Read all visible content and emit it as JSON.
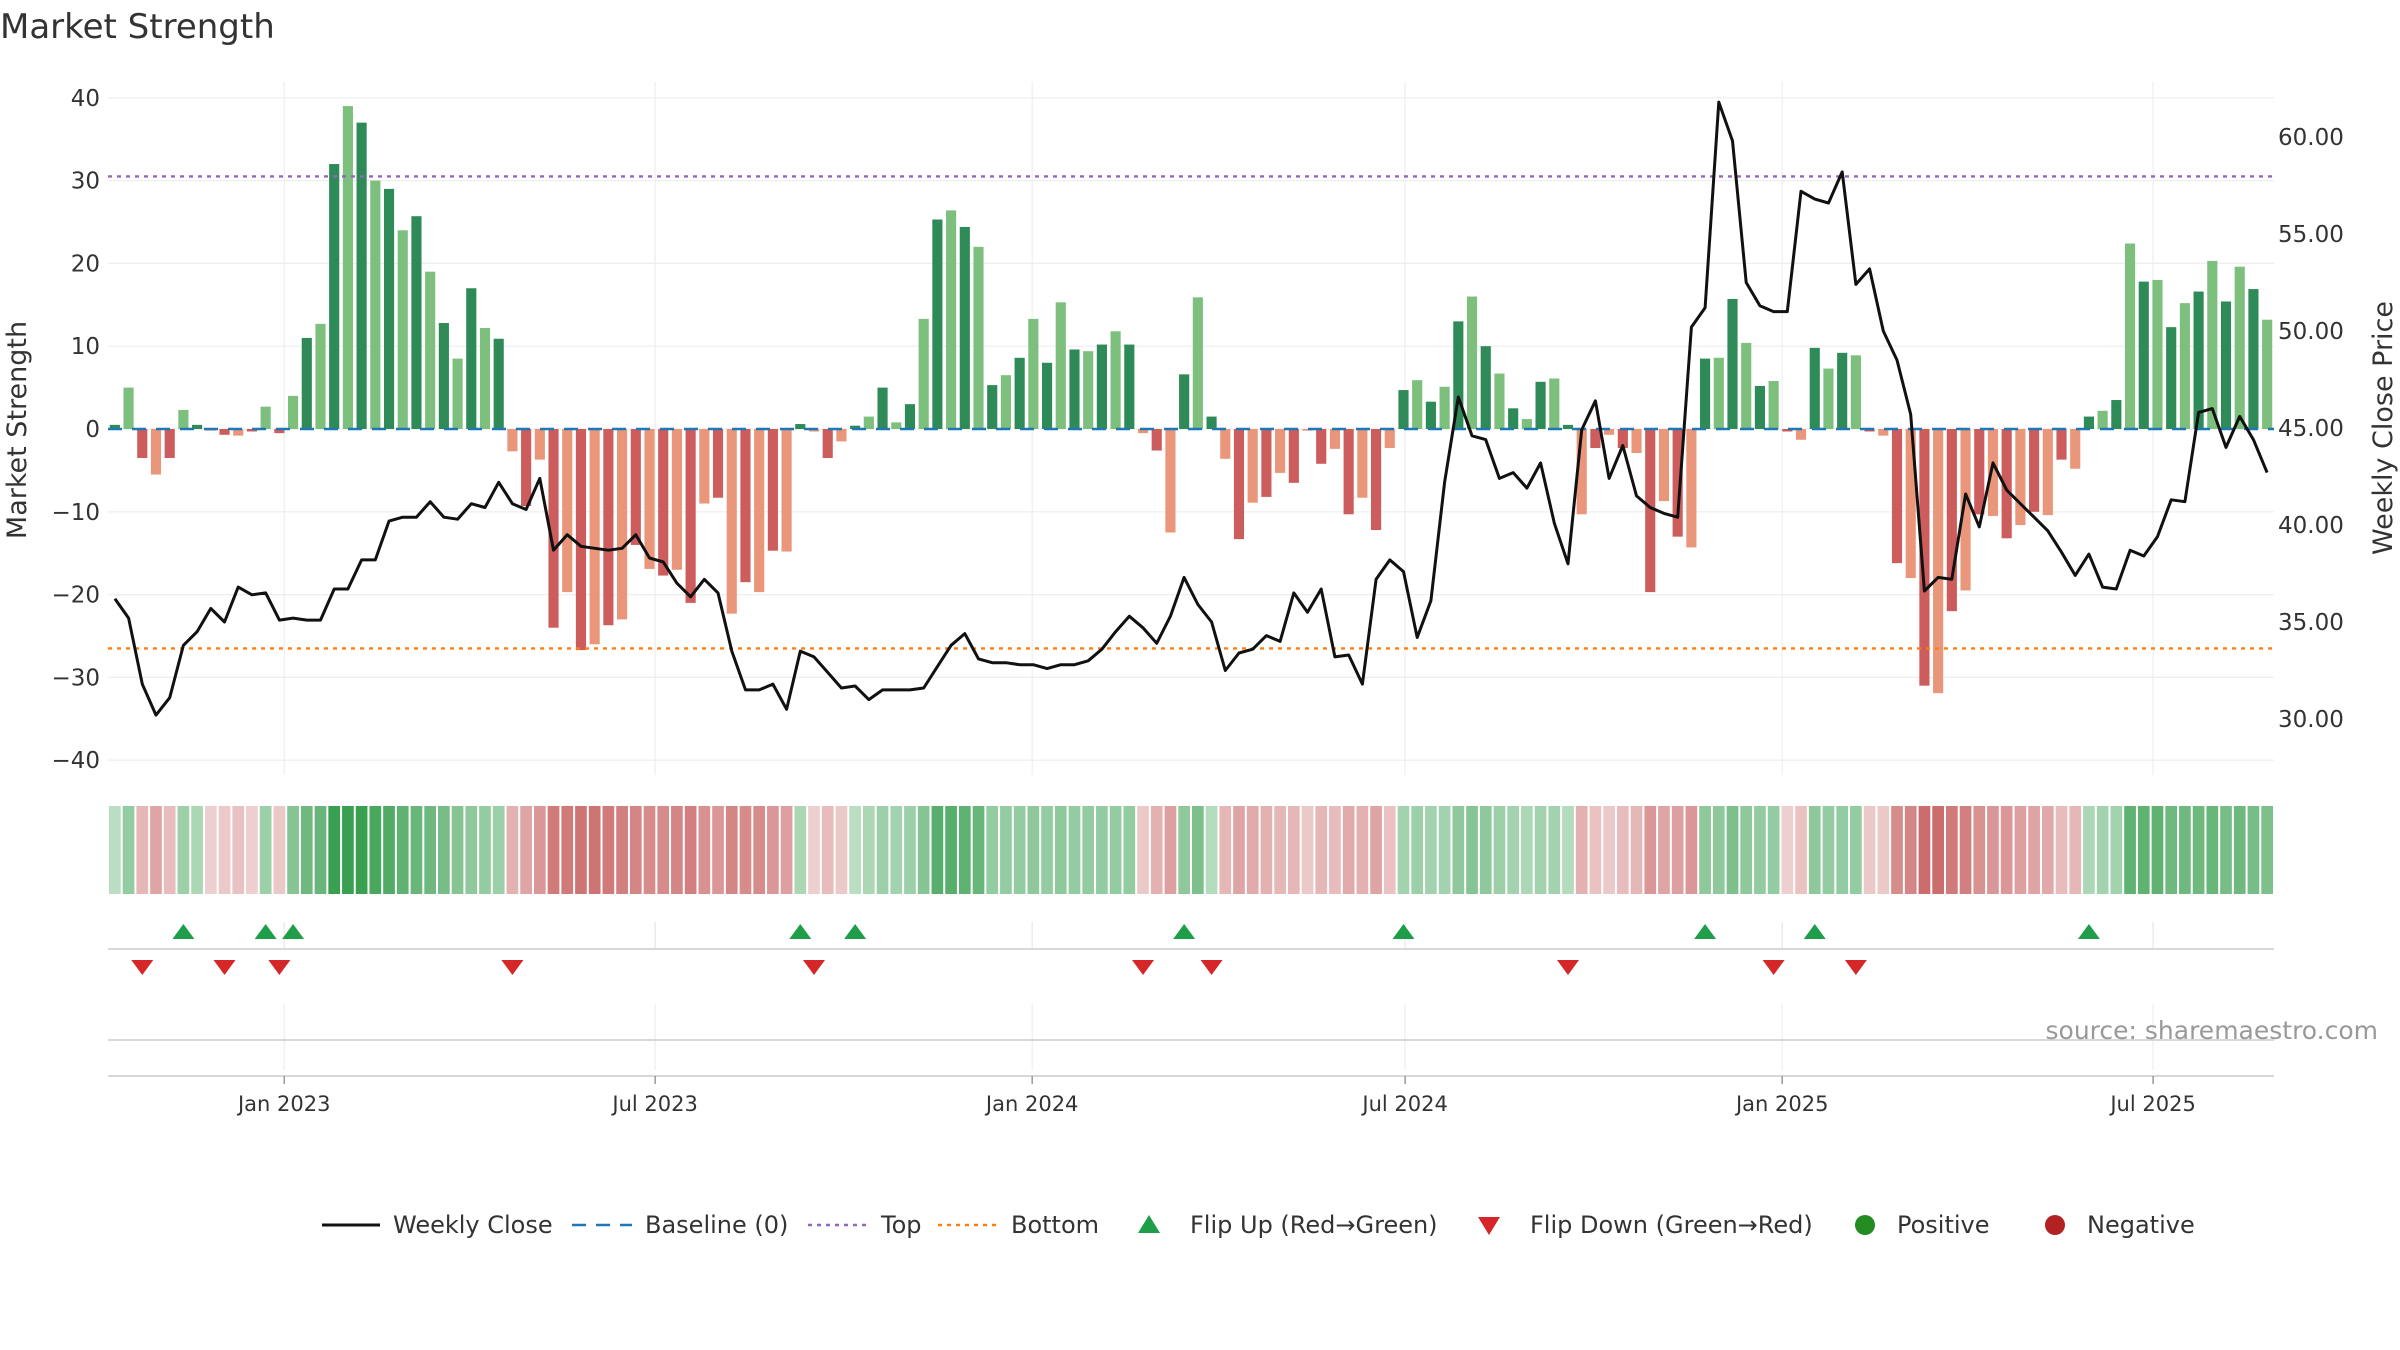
{
  "chart_data": {
    "type": "bar",
    "title": "Market Strength",
    "ylabel": "Market Strength",
    "y2label": "Weekly Close Price",
    "ylim": [
      -44,
      42
    ],
    "y2lim": [
      27.5,
      64
    ],
    "yticks": [
      "40",
      "30",
      "20",
      "10",
      "0",
      "−10",
      "−20",
      "−30",
      "−40"
    ],
    "y2ticks": [
      "60.00",
      "55.00",
      "50.00",
      "45.00",
      "40.00",
      "35.00",
      "30.00"
    ],
    "x_start": "2022-10-07",
    "x_end": "2025-08-29",
    "x_tick_labels": [
      "Jan 2023",
      "Jul 2023",
      "Jan 2024",
      "Jul 2024",
      "Jan 2025",
      "Jul 2025"
    ],
    "x_tick_dates": [
      "2023-01-01",
      "2023-07-01",
      "2024-01-01",
      "2024-07-01",
      "2025-01-01",
      "2025-07-01"
    ],
    "top": 30.5,
    "bottom": -26.5,
    "colors": {
      "strong_green": "#2e8b57",
      "light_green": "#7dbf7d",
      "strong_red": "#cd5c5c",
      "light_red": "#e9967a",
      "price_line": "#111111",
      "baseline": "#1f77b4",
      "top_line": "#9467bd",
      "bottom_line": "#ff7f0e",
      "flip_up": "#1f9e4a",
      "flip_down": "#d62728",
      "positive": "#228b22",
      "negative": "#b22222"
    },
    "strength": [
      0.5,
      5,
      -3.5,
      -5.5,
      -3.5,
      2.3,
      0.5,
      -0.2,
      -0.7,
      -0.8,
      -0.3,
      2.7,
      -0.5,
      4,
      11,
      12.7,
      32,
      39,
      37,
      30,
      29,
      24,
      25.7,
      19,
      12.8,
      8.5,
      17,
      12.2,
      10.9,
      -2.7,
      -9.3,
      -3.7,
      -24,
      -19.7,
      -26.7,
      -26,
      -23.7,
      -23,
      -14,
      -16.9,
      -17.7,
      -17,
      -21,
      -9,
      -8.3,
      -22.3,
      -18.5,
      -19.7,
      -14.7,
      -14.8,
      0.6,
      -0.3,
      -3.5,
      -1.5,
      0.4,
      1.5,
      5,
      0.8,
      3,
      13.3,
      25.3,
      26.4,
      24.4,
      22,
      5.3,
      6.5,
      8.6,
      13.3,
      8,
      15.3,
      9.6,
      9.4,
      10.2,
      11.8,
      10.2,
      -0.5,
      -2.6,
      -12.5,
      6.6,
      15.9,
      1.5,
      -3.6,
      -13.3,
      -8.9,
      -8.2,
      -5.3,
      -6.5,
      -0.2,
      -4.2,
      -2.4,
      -10.3,
      -8.3,
      -12.2,
      -2.3,
      4.7,
      5.9,
      3.3,
      5.1,
      13,
      16,
      10,
      6.7,
      2.5,
      1.2,
      5.7,
      6.1,
      0.5,
      -10.3,
      -2.3,
      -0.7,
      -2.3,
      -2.9,
      -19.7,
      -8.7,
      -13,
      -14.3,
      8.5,
      8.6,
      15.7,
      10.4,
      5.2,
      5.8,
      -0.3,
      -1.3,
      9.8,
      7.3,
      9.2,
      8.9,
      -0.3,
      -0.8,
      -16.2,
      -18,
      -31,
      -31.9,
      -22,
      -19.5,
      -10.3,
      -10.5,
      -13.2,
      -11.6,
      -10,
      -10.4,
      -3.7,
      -4.8,
      1.5,
      2.2,
      3.5,
      22.4,
      17.8,
      18,
      12.3,
      15.2,
      16.6,
      20.3,
      15.4,
      19.6,
      16.9,
      13.2
    ],
    "close": [
      36.2,
      35.2,
      31.8,
      30.2,
      31.1,
      33.8,
      34.5,
      35.7,
      35,
      36.8,
      36.4,
      36.5,
      35.1,
      35.2,
      35.1,
      35.1,
      36.7,
      36.7,
      38.2,
      38.2,
      40.2,
      40.4,
      40.4,
      41.2,
      40.4,
      40.3,
      41.1,
      40.9,
      42.2,
      41.1,
      40.8,
      42.4,
      38.7,
      39.5,
      38.9,
      38.8,
      38.7,
      38.8,
      39.5,
      38.3,
      38.1,
      37,
      36.3,
      37.2,
      36.5,
      33.5,
      31.5,
      31.5,
      31.8,
      30.5,
      33.5,
      33.2,
      32.4,
      31.6,
      31.7,
      31,
      31.5,
      31.5,
      31.5,
      31.6,
      32.7,
      33.8,
      34.4,
      33.1,
      32.9,
      32.9,
      32.8,
      32.8,
      32.6,
      32.8,
      32.8,
      33,
      33.6,
      34.5,
      35.3,
      34.7,
      33.9,
      35.3,
      37.3,
      35.9,
      35,
      32.5,
      33.4,
      33.6,
      34.3,
      34,
      36.5,
      35.5,
      36.7,
      33.2,
      33.3,
      31.8,
      37.2,
      38.2,
      37.6,
      34.2,
      36.1,
      42.2,
      46.6,
      44.6,
      44.4,
      42.4,
      42.7,
      41.9,
      43.2,
      40.1,
      38,
      44.9,
      46.4,
      42.4,
      44.1,
      41.5,
      40.9,
      40.6,
      40.4,
      50.2,
      51.2,
      61.8,
      59.8,
      52.5,
      51.3,
      51,
      51,
      57.2,
      56.8,
      56.6,
      58.2,
      52.4,
      53.2,
      50,
      48.5,
      45.7,
      36.6,
      37.3,
      37.2,
      41.6,
      39.9,
      43.2,
      41.8,
      41.1,
      40.4,
      39.7,
      38.6,
      37.4,
      38.5,
      36.8,
      36.7,
      38.7,
      38.4,
      39.4,
      41.3,
      41.2,
      45.8,
      46,
      44,
      45.6,
      44.4,
      42.7
    ],
    "bands": [
      0.15,
      0.4,
      -0.35,
      -0.5,
      -0.3,
      0.35,
      0.25,
      -0.15,
      -0.2,
      -0.25,
      -0.15,
      0.35,
      -0.2,
      0.5,
      0.65,
      0.7,
      1,
      1,
      1,
      0.9,
      0.85,
      0.75,
      0.7,
      0.65,
      0.6,
      0.5,
      0.45,
      0.4,
      0.35,
      -0.4,
      -0.5,
      -0.6,
      -0.85,
      -0.85,
      -0.9,
      -0.9,
      -0.85,
      -0.8,
      -0.75,
      -0.7,
      -0.7,
      -0.75,
      -0.8,
      -0.65,
      -0.6,
      -0.75,
      -0.7,
      -0.7,
      -0.6,
      -0.55,
      0.25,
      -0.15,
      -0.3,
      -0.2,
      0.15,
      0.25,
      0.35,
      0.3,
      0.35,
      0.5,
      0.8,
      0.8,
      0.75,
      0.7,
      0.4,
      0.4,
      0.4,
      0.45,
      0.4,
      0.45,
      0.4,
      0.4,
      0.4,
      0.4,
      0.4,
      -0.2,
      -0.4,
      -0.55,
      0.45,
      0.55,
      0.2,
      -0.35,
      -0.5,
      -0.45,
      -0.4,
      -0.35,
      -0.35,
      -0.2,
      -0.35,
      -0.3,
      -0.45,
      -0.4,
      -0.5,
      -0.25,
      0.3,
      0.35,
      0.3,
      0.3,
      0.45,
      0.5,
      0.45,
      0.35,
      0.3,
      0.25,
      0.3,
      0.3,
      0.2,
      -0.4,
      -0.25,
      -0.2,
      -0.3,
      -0.35,
      -0.6,
      -0.5,
      -0.55,
      -0.6,
      0.45,
      0.45,
      0.55,
      0.45,
      0.4,
      0.4,
      -0.15,
      -0.25,
      0.45,
      0.4,
      0.4,
      0.4,
      -0.2,
      -0.2,
      -0.7,
      -0.75,
      -0.95,
      -0.95,
      -0.85,
      -0.8,
      -0.65,
      -0.6,
      -0.6,
      -0.55,
      -0.5,
      -0.45,
      -0.3,
      -0.35,
      0.25,
      0.3,
      0.3,
      0.75,
      0.75,
      0.75,
      0.65,
      0.65,
      0.65,
      0.7,
      0.6,
      0.65,
      0.6,
      0.55
    ],
    "flip_up_indices": [
      5,
      11,
      13,
      50,
      54,
      78,
      94,
      116,
      124,
      144
    ],
    "flip_down_indices": [
      2,
      8,
      12,
      29,
      51,
      75,
      80,
      106,
      121,
      127
    ]
  },
  "source": "source: sharemaestro.com",
  "legend": [
    {
      "label": "Weekly Close",
      "kind": "line",
      "color": "#111111"
    },
    {
      "label": "Baseline (0)",
      "kind": "dash",
      "color": "#1f77b4"
    },
    {
      "label": "Top",
      "kind": "dot",
      "color": "#9467bd"
    },
    {
      "label": "Bottom",
      "kind": "dot",
      "color": "#ff7f0e"
    },
    {
      "label": "Flip Up (Red→Green)",
      "kind": "tri-up",
      "color": "#1f9e4a"
    },
    {
      "label": "Flip Down (Green→Red)",
      "kind": "tri-down",
      "color": "#d62728"
    },
    {
      "label": "Positive",
      "kind": "circle",
      "color": "#228b22"
    },
    {
      "label": "Negative",
      "kind": "circle",
      "color": "#b22222"
    }
  ]
}
